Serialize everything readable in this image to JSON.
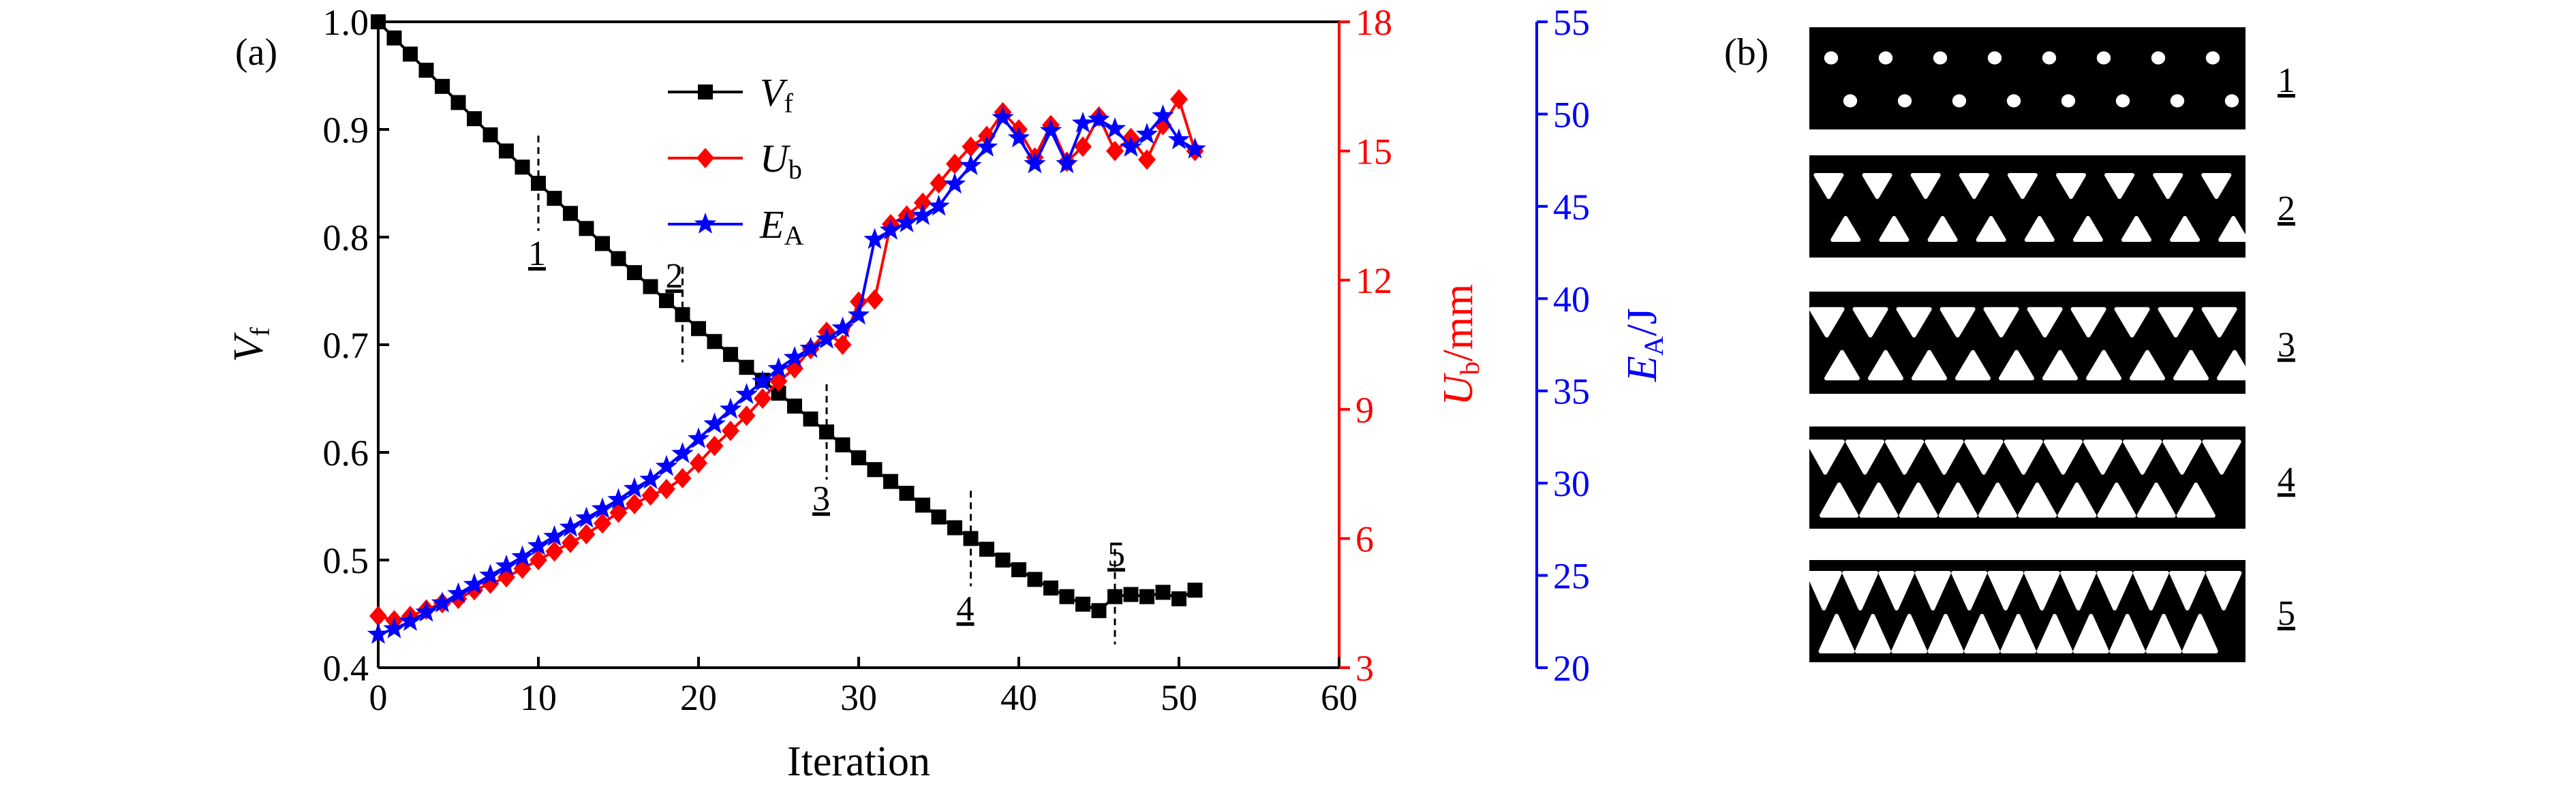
{
  "chart_data": {
    "type": "line",
    "panel_labels": [
      "(a)",
      "(b)"
    ],
    "x": {
      "label": "Iteration",
      "range": [
        0,
        60
      ],
      "ticks": [
        "0",
        "10",
        "20",
        "30",
        "40",
        "50",
        "60"
      ]
    },
    "y_left": {
      "label_main": "V",
      "label_sub": "f",
      "range": [
        0.4,
        1.0
      ],
      "ticks": [
        "0.4",
        "0.5",
        "0.6",
        "0.7",
        "0.8",
        "0.9",
        "1.0"
      ],
      "color": "#000000"
    },
    "y_right1": {
      "label_main": "U",
      "label_sub": "b",
      "label_unit": "/mm",
      "range": [
        3,
        18
      ],
      "ticks": [
        "3",
        "6",
        "9",
        "12",
        "15",
        "18"
      ],
      "color": "#ff0000"
    },
    "y_right2": {
      "label_main": "E",
      "label_sub": "A",
      "label_unit": "/J",
      "range": [
        20,
        55
      ],
      "ticks": [
        "20",
        "25",
        "30",
        "35",
        "40",
        "45",
        "50",
        "55"
      ],
      "color": "#0000ff"
    },
    "series": [
      {
        "name": "V",
        "name_sub": "f",
        "axis": "y_left",
        "color": "#000000",
        "marker": "square",
        "x": [
          0,
          1,
          2,
          3,
          4,
          5,
          6,
          7,
          8,
          9,
          10,
          11,
          12,
          13,
          14,
          15,
          16,
          17,
          18,
          19,
          20,
          21,
          22,
          23,
          24,
          25,
          26,
          27,
          28,
          29,
          30,
          31,
          32,
          33,
          34,
          35,
          36,
          37,
          38,
          39,
          40,
          41,
          42,
          43,
          44,
          45,
          46,
          47,
          48,
          49,
          50,
          51
        ],
        "y": [
          1.0,
          0.985,
          0.97,
          0.955,
          0.94,
          0.925,
          0.91,
          0.895,
          0.88,
          0.865,
          0.85,
          0.836,
          0.822,
          0.808,
          0.794,
          0.78,
          0.767,
          0.754,
          0.741,
          0.728,
          0.715,
          0.703,
          0.691,
          0.679,
          0.667,
          0.655,
          0.643,
          0.631,
          0.619,
          0.607,
          0.595,
          0.584,
          0.573,
          0.562,
          0.551,
          0.54,
          0.53,
          0.52,
          0.51,
          0.5,
          0.491,
          0.482,
          0.474,
          0.466,
          0.459,
          0.453,
          0.466,
          0.468,
          0.466,
          0.47,
          0.464,
          0.472
        ]
      },
      {
        "name": "U",
        "name_sub": "b",
        "axis": "y_right1",
        "color": "#ff0000",
        "marker": "diamond",
        "x": [
          0,
          1,
          2,
          3,
          4,
          5,
          6,
          7,
          8,
          9,
          10,
          11,
          12,
          13,
          14,
          15,
          16,
          17,
          18,
          19,
          20,
          21,
          22,
          23,
          24,
          25,
          26,
          27,
          28,
          29,
          30,
          31,
          32,
          33,
          34,
          35,
          36,
          37,
          38,
          39,
          40,
          41,
          42,
          43,
          44,
          45,
          46,
          47,
          48,
          49,
          50,
          51
        ],
        "y": [
          4.2,
          4.1,
          4.2,
          4.35,
          4.5,
          4.6,
          4.8,
          4.95,
          5.1,
          5.3,
          5.5,
          5.7,
          5.9,
          6.1,
          6.35,
          6.6,
          6.8,
          7.0,
          7.15,
          7.4,
          7.75,
          8.15,
          8.5,
          8.85,
          9.25,
          9.65,
          9.95,
          10.4,
          10.8,
          10.5,
          11.5,
          11.55,
          13.3,
          13.5,
          13.8,
          14.25,
          14.7,
          15.1,
          15.35,
          15.9,
          15.5,
          14.85,
          15.6,
          14.75,
          15.1,
          15.8,
          15.0,
          15.3,
          14.8,
          15.6,
          16.2,
          15.0
        ]
      },
      {
        "name": "E",
        "name_sub": "A",
        "axis": "y_right2",
        "color": "#0000ff",
        "marker": "star",
        "x": [
          0,
          1,
          2,
          3,
          4,
          5,
          6,
          7,
          8,
          9,
          10,
          11,
          12,
          13,
          14,
          15,
          16,
          17,
          18,
          19,
          20,
          21,
          22,
          23,
          24,
          25,
          26,
          27,
          28,
          29,
          30,
          31,
          32,
          33,
          34,
          35,
          36,
          37,
          38,
          39,
          40,
          41,
          42,
          43,
          44,
          45,
          46,
          47,
          48,
          49,
          50,
          51
        ],
        "y": [
          21.8,
          22.1,
          22.5,
          23.0,
          23.5,
          24.0,
          24.5,
          25.0,
          25.5,
          26.0,
          26.6,
          27.1,
          27.6,
          28.1,
          28.6,
          29.1,
          29.7,
          30.2,
          30.9,
          31.6,
          32.4,
          33.2,
          34.0,
          34.8,
          35.5,
          36.2,
          36.8,
          37.3,
          37.8,
          38.4,
          39.1,
          43.2,
          43.7,
          44.1,
          44.5,
          45.0,
          46.2,
          47.2,
          48.2,
          49.8,
          48.7,
          47.3,
          49.1,
          47.3,
          49.5,
          49.7,
          49.2,
          48.2,
          48.9,
          49.9,
          48.6,
          48.1
        ]
      }
    ],
    "stage_markers": [
      {
        "label": "1",
        "x": 10
      },
      {
        "label": "2",
        "x": 19
      },
      {
        "label": "3",
        "x": 28
      },
      {
        "label": "4",
        "x": 37
      },
      {
        "label": "5",
        "x": 46
      }
    ],
    "structure_labels": [
      "1",
      "2",
      "3",
      "4",
      "5"
    ],
    "legend_placement": "top-center",
    "grid": false
  }
}
